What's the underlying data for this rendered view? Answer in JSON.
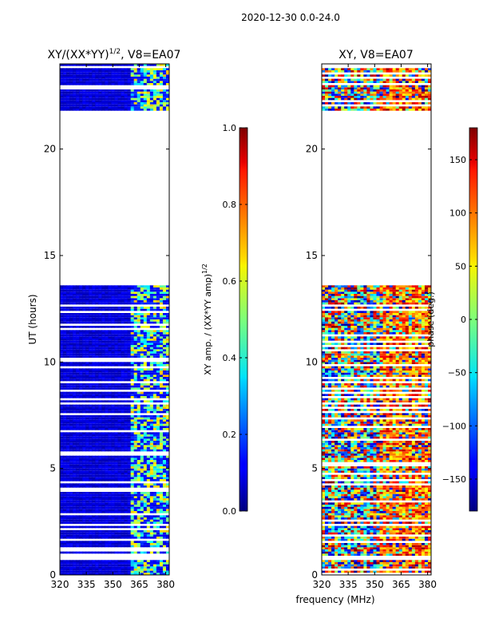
{
  "suptitle": "2020-12-30 0.0-24.0",
  "chart_data": [
    {
      "type": "heatmap",
      "title": "XY/(XX*YY)^{1/2}, V8=EA07",
      "title_main": "XY/(XX*YY)",
      "title_exp": "1/2",
      "title_tail": ", V8=EA07",
      "xlabel": "",
      "ylabel": "UT (hours)",
      "xlim": [
        320,
        382
      ],
      "ylim": [
        0,
        24
      ],
      "xticks": [
        320,
        335,
        350,
        365,
        380
      ],
      "yticks": [
        0,
        5,
        10,
        15,
        20
      ],
      "colorbar": {
        "label_main": "XY amp. / (XX*YY amp)",
        "label_exp": "1/2",
        "range": [
          0.0,
          1.0
        ],
        "ticks": [
          "0.0",
          "0.2",
          "0.4",
          "0.6",
          "0.8",
          "1.0"
        ],
        "tick_values": [
          0.0,
          0.2,
          0.4,
          0.6,
          0.8,
          1.0
        ]
      },
      "data_blocks_hours": [
        [
          0.0,
          13.6
        ],
        [
          21.8,
          24.0
        ]
      ],
      "empty_span_hours": [
        13.6,
        21.8
      ]
    },
    {
      "type": "heatmap",
      "title": "XY, V8=EA07",
      "xlabel": "frequency (MHz)",
      "ylabel": "",
      "xlim": [
        320,
        382
      ],
      "ylim": [
        0,
        24
      ],
      "xticks": [
        320,
        335,
        350,
        365,
        380
      ],
      "yticks": [
        0,
        5,
        10,
        15,
        20
      ],
      "colorbar": {
        "label": "phase (deg.)",
        "range": [
          -180,
          180
        ],
        "ticks": [
          "−150",
          "−100",
          "−50",
          "0",
          "50",
          "100",
          "150"
        ],
        "tick_values": [
          -150,
          -100,
          -50,
          0,
          50,
          100,
          150
        ]
      },
      "data_blocks_hours": [
        [
          0.0,
          13.6
        ],
        [
          21.8,
          24.0
        ]
      ],
      "empty_span_hours": [
        13.6,
        21.8
      ]
    }
  ]
}
